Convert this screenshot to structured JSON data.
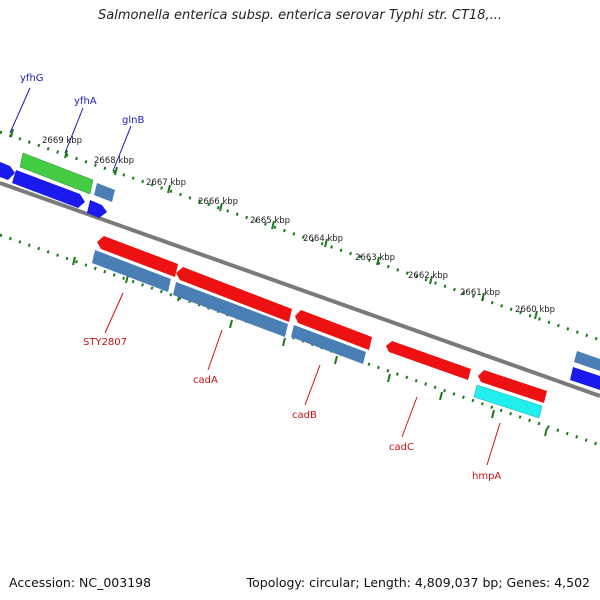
{
  "title": "Salmonella enterica subsp. enterica serovar Typhi str. CT18,...",
  "footer": {
    "accession": "Accession: NC_003198",
    "summary": "Topology: circular; Length: 4,809,037 bp; Genes: 4,502"
  },
  "colors": {
    "backbone": "#808080",
    "ticks": "#1a7a1a",
    "forward_label": "#1a1ab8",
    "reverse_label": "#cc1111",
    "red_gene": "#ee1111",
    "steelblue_gene": "#4a7fb5",
    "blue_gene": "#1a1aee",
    "green_gene": "#44cc44",
    "cyan_gene": "#22eeee"
  },
  "kbp_labels": [
    "2669 kbp",
    "2668 kbp",
    "2667 kbp",
    "2666 kbp",
    "2665 kbp",
    "2664 kbp",
    "2663 kbp",
    "2662 kbp",
    "2661 kbp",
    "2660 kbp"
  ],
  "forward_genes": [
    "yfhG",
    "yfhA",
    "glnB"
  ],
  "reverse_genes": [
    "STY2807",
    "cadA",
    "cadB",
    "cadC",
    "hmpA"
  ]
}
